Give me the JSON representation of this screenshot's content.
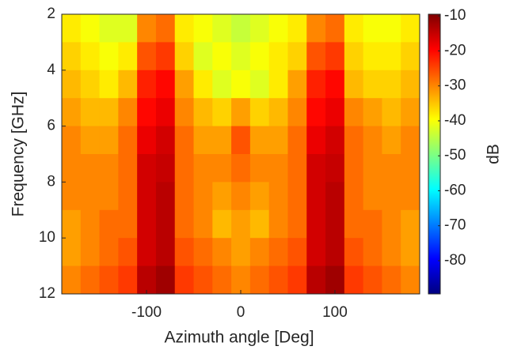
{
  "chart_data": {
    "type": "heatmap",
    "xlabel": "Azimuth angle [Deg]",
    "ylabel": "Frequency [GHz]",
    "colorbar_label": "dB",
    "x_bins": [
      -190,
      -170,
      -150,
      -130,
      -110,
      -90,
      -70,
      -50,
      -30,
      -10,
      10,
      30,
      50,
      70,
      90,
      110,
      130,
      150,
      170,
      190
    ],
    "y_bins": [
      2,
      3,
      4,
      5,
      6,
      7,
      8,
      9,
      10,
      11,
      12
    ],
    "z": [
      [
        -38,
        -40,
        -42,
        -42,
        -30,
        -28,
        -38,
        -40,
        -42,
        -44,
        -42,
        -40,
        -38,
        -30,
        -28,
        -38,
        -40,
        -40,
        -38
      ],
      [
        -36,
        -38,
        -40,
        -38,
        -26,
        -24,
        -36,
        -42,
        -40,
        -42,
        -40,
        -38,
        -36,
        -26,
        -24,
        -36,
        -38,
        -38,
        -36
      ],
      [
        -34,
        -36,
        -38,
        -34,
        -22,
        -20,
        -32,
        -38,
        -42,
        -40,
        -42,
        -38,
        -32,
        -22,
        -20,
        -34,
        -36,
        -36,
        -34
      ],
      [
        -32,
        -34,
        -34,
        -30,
        -20,
        -18,
        -30,
        -34,
        -36,
        -32,
        -36,
        -34,
        -30,
        -20,
        -18,
        -30,
        -32,
        -34,
        -32
      ],
      [
        -30,
        -32,
        -32,
        -28,
        -18,
        -16,
        -28,
        -32,
        -32,
        -26,
        -32,
        -32,
        -28,
        -18,
        -16,
        -28,
        -30,
        -32,
        -30
      ],
      [
        -30,
        -30,
        -30,
        -28,
        -16,
        -15,
        -28,
        -30,
        -30,
        -28,
        -30,
        -30,
        -28,
        -16,
        -15,
        -28,
        -30,
        -30,
        -30
      ],
      [
        -30,
        -30,
        -30,
        -28,
        -16,
        -14,
        -28,
        -30,
        -32,
        -30,
        -32,
        -30,
        -28,
        -16,
        -14,
        -28,
        -30,
        -30,
        -30
      ],
      [
        -32,
        -30,
        -28,
        -28,
        -16,
        -14,
        -28,
        -30,
        -34,
        -32,
        -34,
        -30,
        -28,
        -16,
        -14,
        -28,
        -28,
        -30,
        -32
      ],
      [
        -32,
        -30,
        -28,
        -26,
        -16,
        -14,
        -26,
        -28,
        -30,
        -32,
        -30,
        -28,
        -26,
        -16,
        -14,
        -26,
        -28,
        -30,
        -32
      ],
      [
        -30,
        -28,
        -26,
        -24,
        -14,
        -12,
        -24,
        -26,
        -28,
        -30,
        -28,
        -26,
        -24,
        -14,
        -12,
        -24,
        -26,
        -28,
        -30
      ]
    ],
    "xlim": [
      -190,
      190
    ],
    "xticks": [
      -100,
      0,
      100
    ],
    "ylim": [
      12,
      2
    ],
    "yticks": [
      2,
      4,
      6,
      8,
      10,
      12
    ],
    "clim": [
      -89.5,
      -9.5
    ],
    "cticks": [
      -10,
      -20,
      -30,
      -40,
      -50,
      -60,
      -70,
      -80
    ],
    "colormap": "jet"
  }
}
